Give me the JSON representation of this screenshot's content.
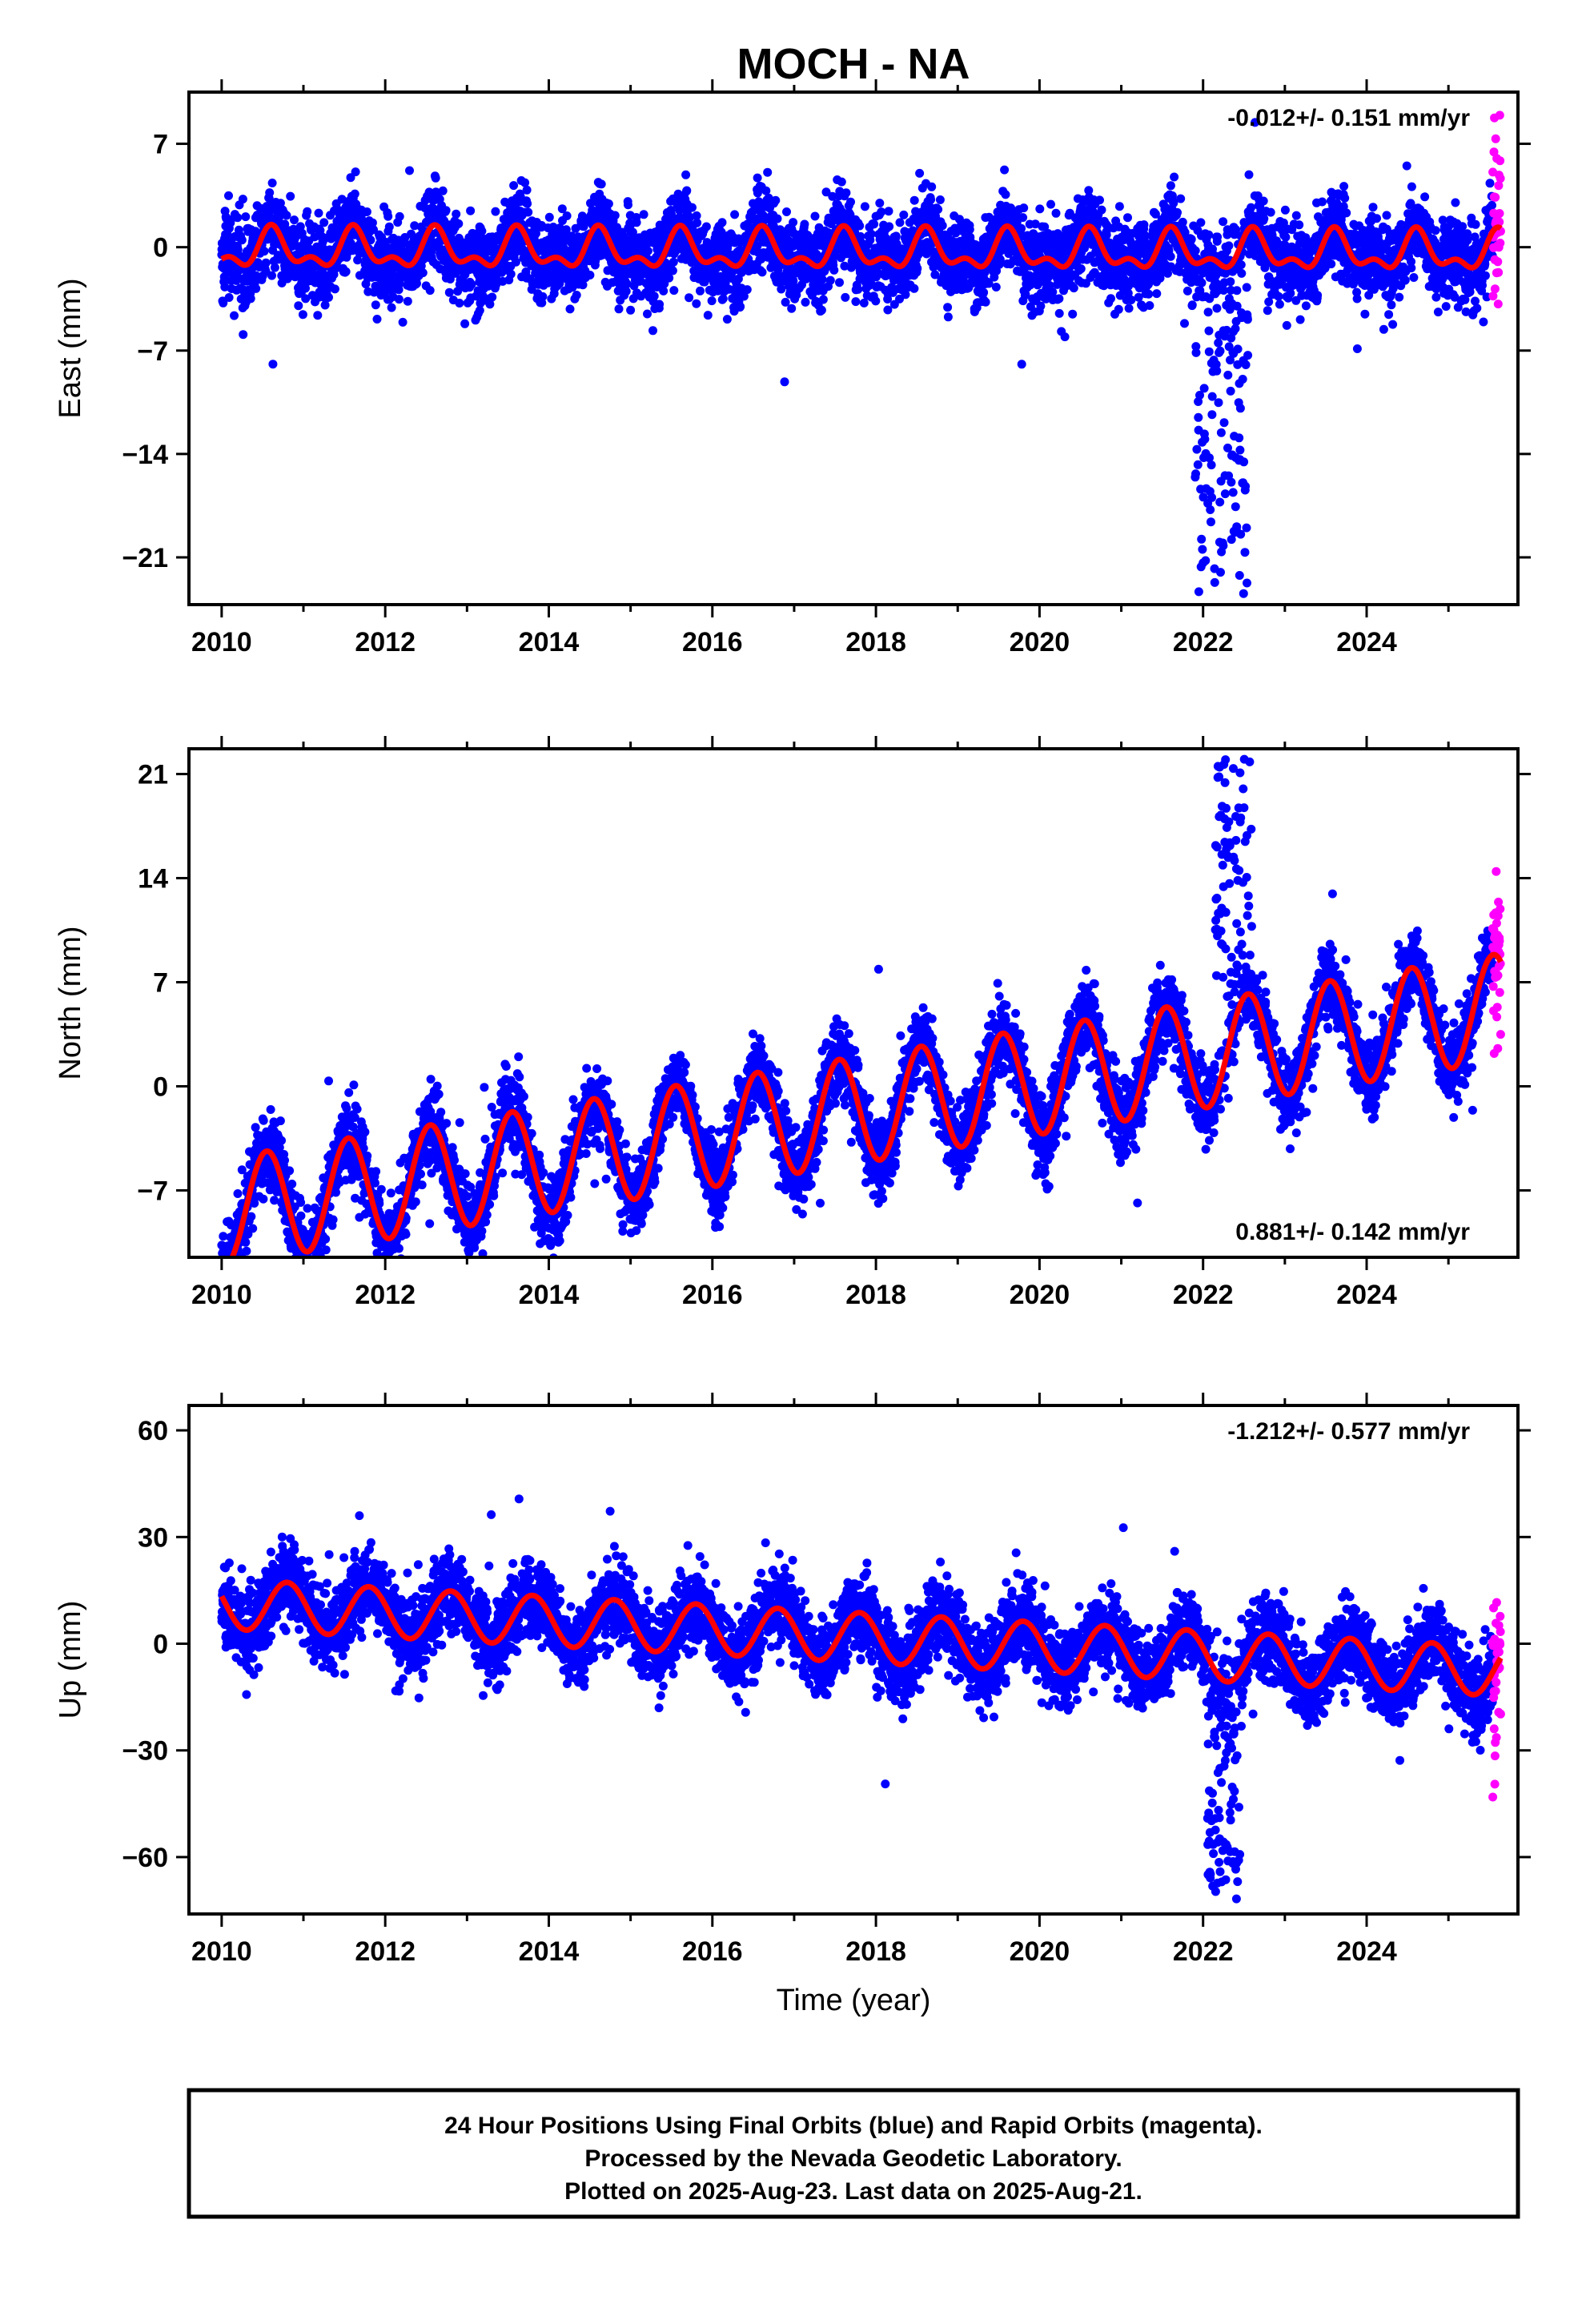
{
  "title": "MOCH - NA",
  "footer": {
    "lines": [
      "24 Hour Positions Using Final Orbits (blue) and Rapid Orbits (magenta).",
      "Processed by the Nevada Geodetic Laboratory.",
      "Plotted on 2025-Aug-23. Last data on 2025-Aug-21."
    ]
  },
  "colors": {
    "final_orbits": "#0000ff",
    "rapid_orbits": "#ff00ff",
    "model_fit": "#ff0000",
    "frame": "#000000"
  },
  "chart_data": [
    {
      "type": "scatter",
      "component": "east",
      "ylabel": "East (mm)",
      "xlabel": "",
      "rate_label": "-0.012+/- 0.151 mm/yr",
      "rate_position": "top-right",
      "xlim": [
        2009.6,
        2025.85
      ],
      "ylim": [
        -24.2,
        10.5
      ],
      "xticks": [
        2010,
        2012,
        2014,
        2016,
        2018,
        2020,
        2022,
        2024
      ],
      "xtick_labels": [
        "2010",
        "2012",
        "2014",
        "2016",
        "2018",
        "2020",
        "2022",
        "2024"
      ],
      "yticks": [
        7,
        0,
        -7,
        -14,
        -21
      ],
      "ytick_labels": [
        "7",
        "0",
        "−7",
        "−14",
        "−21"
      ],
      "data_start": 2010.0,
      "data_end": 2025.64,
      "rapid_start": 2025.54,
      "series": [
        {
          "name": "Final Orbits",
          "color": "#0000ff",
          "scatter_sd": 1.35
        },
        {
          "name": "Rapid Orbits",
          "color": "#ff00ff"
        }
      ],
      "model": {
        "offset": -0.3,
        "trend": -0.012,
        "t0": 2018.0,
        "annual_amp": 1.1,
        "annual_peak": 0.62,
        "semiannual_amp": 0.65,
        "semiannual_peak": 0.1
      },
      "excursions": [
        {
          "t_start": 2021.9,
          "t_end": 2022.55,
          "min": -23.5,
          "max": -2.0
        }
      ]
    },
    {
      "type": "scatter",
      "component": "north",
      "ylabel": "North (mm)",
      "xlabel": "",
      "rate_label": "0.881+/- 0.142 mm/yr",
      "rate_position": "bottom-right",
      "xlim": [
        2009.6,
        2025.85
      ],
      "ylim": [
        -11.5,
        22.7
      ],
      "xticks": [
        2010,
        2012,
        2014,
        2016,
        2018,
        2020,
        2022,
        2024
      ],
      "xtick_labels": [
        "2010",
        "2012",
        "2014",
        "2016",
        "2018",
        "2020",
        "2022",
        "2024"
      ],
      "yticks": [
        21,
        14,
        7,
        0,
        -7
      ],
      "ytick_labels": [
        "21",
        "14",
        "7",
        "0",
        "−7"
      ],
      "data_start": 2010.0,
      "data_end": 2025.64,
      "rapid_start": 2025.54,
      "series": [
        {
          "name": "Final Orbits",
          "color": "#0000ff",
          "scatter_sd": 1.3
        },
        {
          "name": "Rapid Orbits",
          "color": "#ff00ff"
        }
      ],
      "model": {
        "offset": -1.4,
        "trend": 0.881,
        "t0": 2018.0,
        "annual_amp": 3.6,
        "annual_peak": 0.55,
        "semiannual_amp": 0.0,
        "semiannual_peak": 0.0
      },
      "excursions": [
        {
          "t_start": 2022.15,
          "t_end": 2022.6,
          "min": 6.0,
          "max": 22.0
        }
      ]
    },
    {
      "type": "scatter",
      "component": "up",
      "ylabel": "Up (mm)",
      "xlabel": "Time (year)",
      "rate_label": "-1.212+/- 0.577 mm/yr",
      "rate_position": "top-right",
      "xlim": [
        2009.6,
        2025.85
      ],
      "ylim": [
        -76,
        67
      ],
      "xticks": [
        2010,
        2012,
        2014,
        2016,
        2018,
        2020,
        2022,
        2024
      ],
      "xtick_labels": [
        "2010",
        "2012",
        "2014",
        "2016",
        "2018",
        "2020",
        "2022",
        "2024"
      ],
      "yticks": [
        60,
        30,
        0,
        -30,
        -60
      ],
      "ytick_labels": [
        "60",
        "30",
        "0",
        "−30",
        "−60"
      ],
      "data_start": 2010.0,
      "data_end": 2025.64,
      "rapid_start": 2025.54,
      "series": [
        {
          "name": "Final Orbits",
          "color": "#0000ff",
          "scatter_sd": 5.5
        },
        {
          "name": "Rapid Orbits",
          "color": "#ff00ff"
        }
      ],
      "model": {
        "offset": 1.5,
        "trend": -1.212,
        "t0": 2018.0,
        "annual_amp": 7.0,
        "annual_peak": 0.8,
        "semiannual_amp": 0.0,
        "semiannual_peak": 0.0
      },
      "excursions": [
        {
          "t_start": 2022.05,
          "t_end": 2022.45,
          "min": -72.0,
          "max": -15.0
        }
      ]
    }
  ]
}
